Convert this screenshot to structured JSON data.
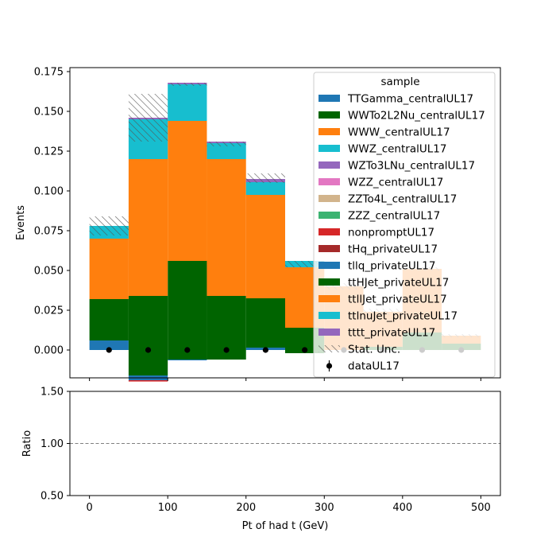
{
  "chart_data": [
    {
      "type": "bar",
      "panel": "main",
      "stacked": true,
      "bin_edges": [
        0,
        50,
        100,
        150,
        200,
        250,
        300,
        350,
        400,
        450,
        500
      ],
      "xlim": [
        -25,
        525
      ],
      "ylim": [
        -0.0175,
        0.1775
      ],
      "ylabel": "Events",
      "yticks": [
        "0.000",
        "0.025",
        "0.050",
        "0.075",
        "0.100",
        "0.125",
        "0.150",
        "0.175"
      ],
      "ytick_values": [
        0,
        0.025,
        0.05,
        0.075,
        0.1,
        0.125,
        0.15,
        0.175
      ],
      "legend_title": "sample",
      "legend_placement": "top-right",
      "series": [
        {
          "name": "TTGamma_centralUL17",
          "color": "#1f77b4",
          "values": [
            0.006,
            0,
            0,
            0,
            0.0015,
            0,
            0,
            0,
            0,
            0
          ]
        },
        {
          "name": "WWTo2L2Nu_centralUL17",
          "color": "#006400",
          "values": [
            0.026,
            0.034,
            0.056,
            0.034,
            0.031,
            0.014,
            0,
            0.002,
            0.011,
            0.004
          ]
        },
        {
          "name": "WWW_centralUL17",
          "color": "#ff7f0e",
          "values": [
            0.038,
            0.086,
            0.088,
            0.086,
            0.065,
            0.038,
            0.04,
            0.022,
            0.04,
            0.005
          ]
        },
        {
          "name": "WWZ_centralUL17",
          "color": "#17becf",
          "values": [
            0.008,
            0.025,
            0.023,
            0.01,
            0.008,
            0.004,
            0,
            0,
            0,
            0
          ]
        },
        {
          "name": "WZTo3LNu_centralUL17",
          "color": "#9467bd",
          "values": [
            0,
            0.001,
            0.001,
            0.001,
            0.002,
            0,
            0,
            0,
            0,
            0
          ]
        },
        {
          "name": "WZZ_centralUL17",
          "color": "#e377c2",
          "values": [
            0,
            0,
            0,
            0,
            0,
            0,
            0,
            0,
            0,
            0
          ]
        },
        {
          "name": "ZZTo4L_centralUL17",
          "color": "#d2b48c",
          "values": [
            0,
            0,
            0,
            0,
            0,
            0,
            0,
            0,
            0,
            0
          ]
        },
        {
          "name": "ZZZ_centralUL17",
          "color": "#3cb371",
          "values": [
            0,
            0,
            0,
            0,
            0,
            0,
            0,
            0,
            0,
            0
          ]
        },
        {
          "name": "nonpromptUL17",
          "color": "#d62728",
          "values": [
            0,
            0,
            0,
            0,
            0,
            0,
            0,
            0,
            0,
            0
          ]
        },
        {
          "name": "tHq_privateUL17",
          "color": "#a52a2a",
          "values": [
            0,
            0,
            0,
            0,
            0,
            0,
            0,
            0,
            0,
            0
          ]
        },
        {
          "name": "tllq_privateUL17",
          "color": "#1f77b4",
          "values": [
            0,
            0,
            0,
            0,
            0,
            0,
            0,
            0,
            0,
            0
          ]
        },
        {
          "name": "ttHJet_privateUL17",
          "color": "#006400",
          "values": [
            0,
            0,
            0,
            0,
            0,
            0,
            0,
            0,
            0,
            0
          ]
        },
        {
          "name": "ttllJet_privateUL17",
          "color": "#ff7f0e",
          "values": [
            0,
            0,
            0,
            0,
            0,
            0,
            0,
            0,
            0,
            0
          ]
        },
        {
          "name": "ttlnuJet_privateUL17",
          "color": "#17becf",
          "values": [
            0,
            0,
            0,
            0,
            0,
            0,
            0,
            0,
            0,
            0
          ]
        },
        {
          "name": "tttt_privateUL17",
          "color": "#9467bd",
          "values": [
            0,
            0,
            0,
            0,
            0,
            0,
            0,
            0,
            0,
            0
          ]
        }
      ],
      "negative_series": [
        {
          "name": "WWTo2L2Nu_centralUL17",
          "color": "#006400",
          "values": [
            0,
            -0.016,
            -0.006,
            -0.006,
            0,
            -0.002,
            0,
            0,
            0,
            0
          ]
        },
        {
          "name": "TTGamma_centralUL17",
          "color": "#1f77b4",
          "values": [
            0,
            -0.003,
            -0.0005,
            0,
            0,
            0,
            0,
            0,
            0,
            0
          ]
        },
        {
          "name": "nonpromptUL17",
          "color": "#d62728",
          "values": [
            0,
            -0.0008,
            0,
            0,
            0,
            0,
            0,
            0,
            0,
            0
          ]
        }
      ],
      "stat_unc": {
        "name": "Stat. Unc.",
        "low": [
          0.072,
          0.131,
          0.166,
          0.128,
          0.105,
          0.052,
          0.038,
          0.022,
          0.05,
          0.008
        ],
        "high": [
          0.084,
          0.161,
          0.168,
          0.131,
          0.111,
          0.056,
          0.042,
          0.026,
          0.052,
          0.01
        ]
      },
      "data_points": {
        "name": "dataUL17",
        "x": [
          25,
          75,
          125,
          175,
          225,
          275,
          325,
          375,
          425,
          475
        ],
        "y": [
          0,
          0,
          0,
          0,
          0,
          0,
          0,
          0,
          0,
          0
        ]
      }
    },
    {
      "type": "line",
      "panel": "ratio",
      "ylabel": "Ratio",
      "xlabel": "Pt of had t (GeV)",
      "xlim": [
        -25,
        525
      ],
      "ylim": [
        0.5,
        1.5
      ],
      "xticks": [
        "0",
        "100",
        "200",
        "300",
        "400",
        "500"
      ],
      "xtick_values": [
        0,
        100,
        200,
        300,
        400,
        500
      ],
      "yticks": [
        "0.50",
        "1.00",
        "1.50"
      ],
      "ytick_values": [
        0.5,
        1.0,
        1.5
      ],
      "reference_line": 1.0,
      "ratio_points": []
    }
  ]
}
